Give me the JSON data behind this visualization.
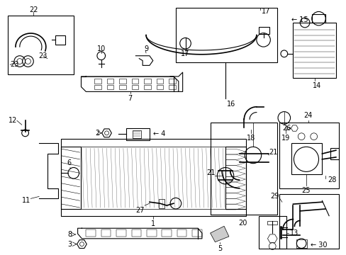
{
  "bg_color": "#ffffff",
  "line_color": "#000000",
  "fig_w": 4.89,
  "fig_h": 3.6,
  "dpi": 100
}
